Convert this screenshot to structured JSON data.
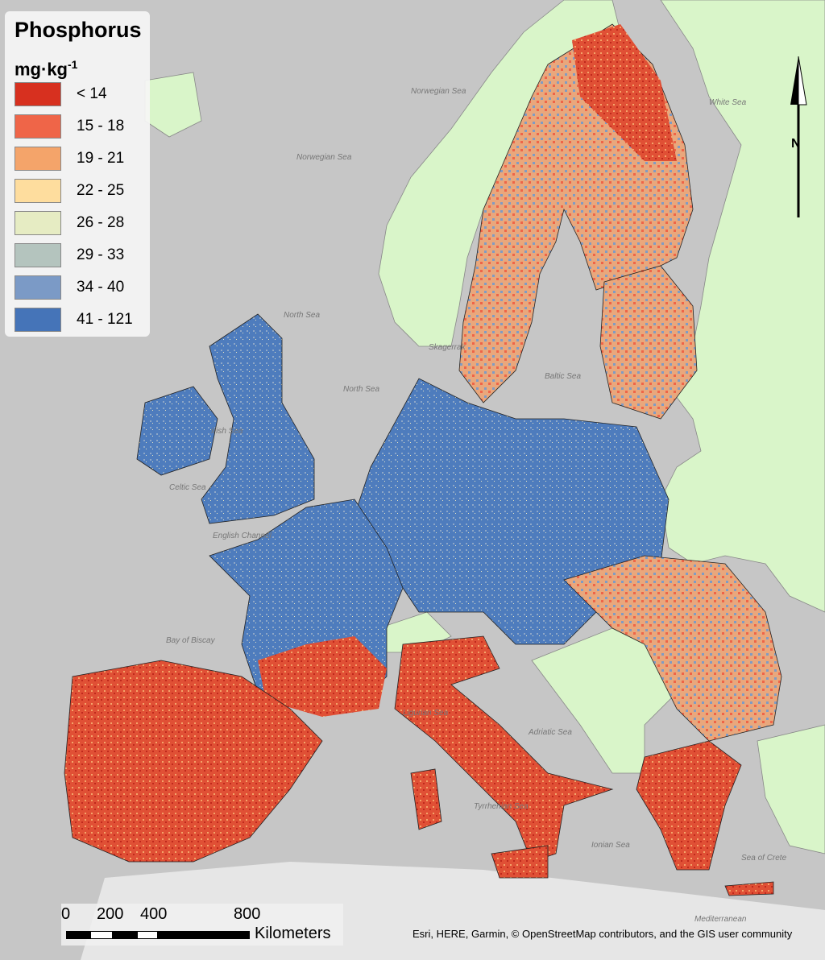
{
  "legend": {
    "title": "Phosphorus",
    "unit_base": "mg·kg",
    "unit_exp": "-1",
    "classes": [
      {
        "label": "< 14",
        "color": "#d7301f"
      },
      {
        "label": "15 - 18",
        "color": "#ef6548"
      },
      {
        "label": "19 - 21",
        "color": "#f4a46a"
      },
      {
        "label": "22 - 25",
        "color": "#fedd9e"
      },
      {
        "label": "26 - 28",
        "color": "#e6ecc3"
      },
      {
        "label": "29 - 33",
        "color": "#b4c4be"
      },
      {
        "label": "34 - 40",
        "color": "#7b9ac6"
      },
      {
        "label": "41 - 121",
        "color": "#4574b8"
      }
    ]
  },
  "north_arrow": {
    "label": "N"
  },
  "scale_bar": {
    "ticks": [
      "0",
      "200",
      "400",
      "800"
    ],
    "unit": "Kilometers"
  },
  "attribution": "Esri, HERE, Garmin, © OpenStreetMap contributors, and the GIS user community",
  "sea_labels": [
    "Norwegian Sea",
    "Norwegian Sea",
    "White Sea",
    "North Sea",
    "North Sea",
    "Skagerrak",
    "Baltic Sea",
    "Irish Sea",
    "Celtic Sea",
    "English Channel",
    "Bay of Biscay",
    "Ligurian Sea",
    "Adriatic Sea",
    "Tyrrhenian Sea",
    "Ionian Sea",
    "Sea of Crete",
    "Mediterranean"
  ],
  "colors": {
    "sea": "#c6c6c6",
    "background_land": "#d9f5c9",
    "border": "#1a1a1a"
  }
}
